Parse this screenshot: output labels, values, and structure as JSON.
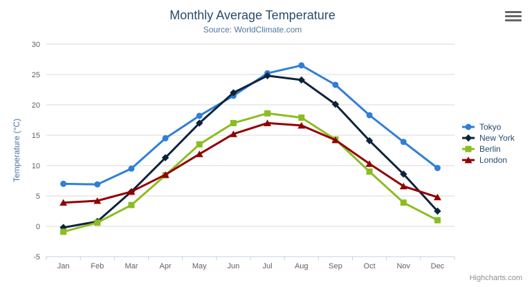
{
  "icons": {
    "export_menu": "hamburger-icon"
  },
  "credits_label": "Highcharts.com",
  "chart_data": {
    "type": "line",
    "title": "Monthly Average Temperature",
    "subtitle": "Source: WorldClimate.com",
    "xlabel": "",
    "ylabel": "Temperature (°C)",
    "categories": [
      "Jan",
      "Feb",
      "Mar",
      "Apr",
      "May",
      "Jun",
      "Jul",
      "Aug",
      "Sep",
      "Oct",
      "Nov",
      "Dec"
    ],
    "ylim": [
      -5,
      30
    ],
    "ytick_step": 5,
    "grid": "horizontal",
    "legend_position": "right",
    "series": [
      {
        "name": "Tokyo",
        "color": "#2f7ed8",
        "marker": "circle",
        "values": [
          7.0,
          6.9,
          9.5,
          14.5,
          18.2,
          21.5,
          25.2,
          26.5,
          23.3,
          18.3,
          13.9,
          9.6
        ]
      },
      {
        "name": "New York",
        "color": "#0d233a",
        "marker": "diamond",
        "values": [
          -0.2,
          0.8,
          5.7,
          11.3,
          17.0,
          22.0,
          24.8,
          24.1,
          20.1,
          14.1,
          8.6,
          2.5
        ]
      },
      {
        "name": "Berlin",
        "color": "#8bbc21",
        "marker": "square",
        "values": [
          -0.9,
          0.6,
          3.5,
          8.4,
          13.5,
          17.0,
          18.6,
          17.9,
          14.3,
          9.0,
          3.9,
          1.0
        ]
      },
      {
        "name": "London",
        "color": "#910000",
        "marker": "triangle",
        "values": [
          3.9,
          4.2,
          5.7,
          8.5,
          11.9,
          15.2,
          17.0,
          16.6,
          14.2,
          10.3,
          6.6,
          4.8
        ]
      }
    ],
    "colors": {
      "title": "#274b6d",
      "subtitle": "#4d759e",
      "axis_title": "#4d759e",
      "tick_label": "#606060",
      "grid_line": "#d8d8d8",
      "axis_line": "#c0d0e0",
      "legend_text": "#274b6d",
      "credits": "#909090",
      "background": "#ffffff"
    }
  }
}
